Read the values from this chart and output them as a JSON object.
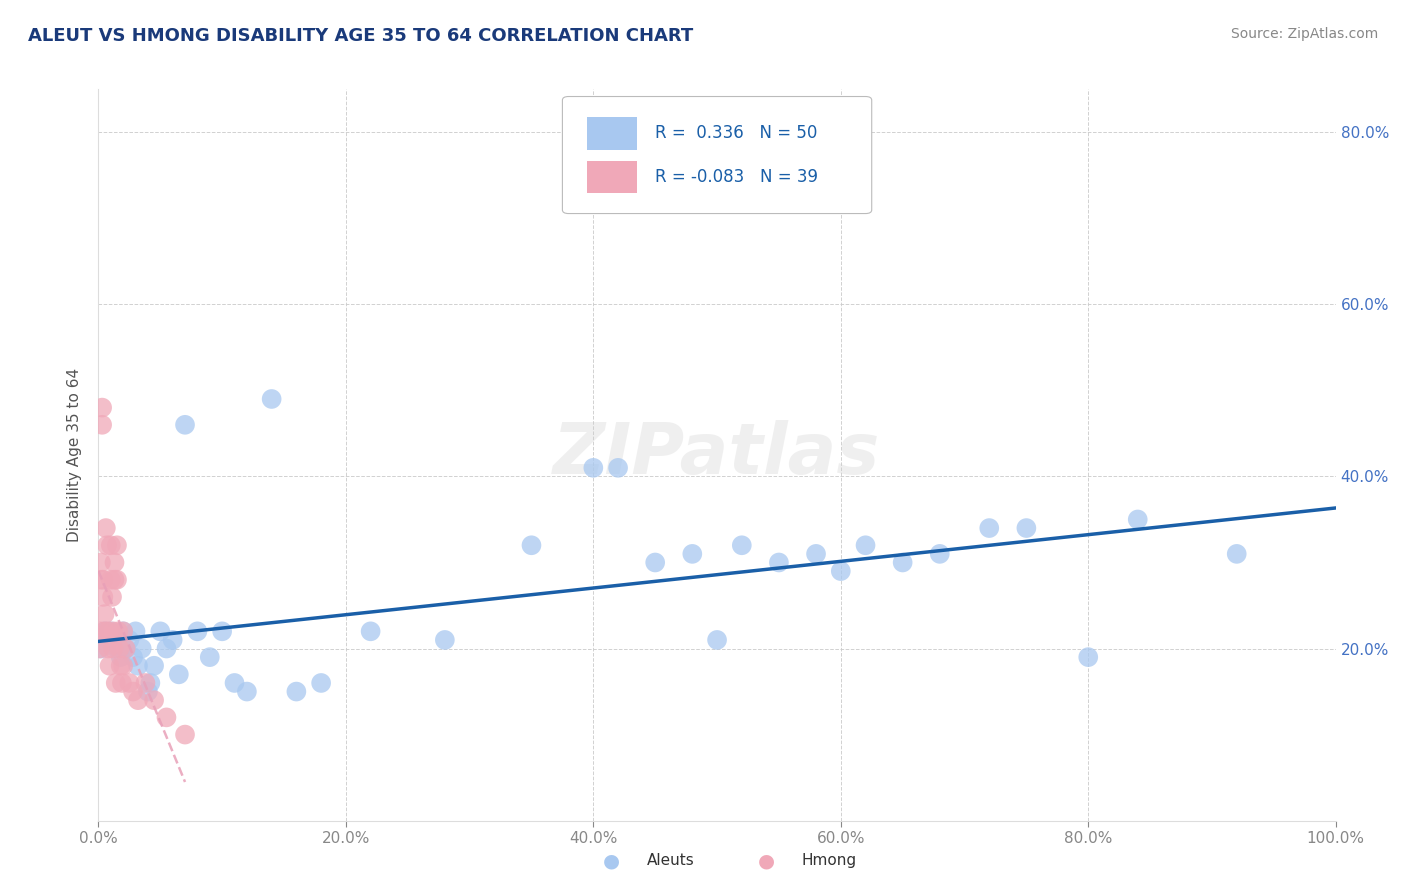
{
  "title": "ALEUT VS HMONG DISABILITY AGE 35 TO 64 CORRELATION CHART",
  "source": "Source: ZipAtlas.com",
  "ylabel": "Disability Age 35 to 64",
  "xlim": [
    0.0,
    1.0
  ],
  "ylim": [
    0.0,
    0.85
  ],
  "xticks": [
    0.0,
    0.2,
    0.4,
    0.6,
    0.8,
    1.0
  ],
  "xticklabels": [
    "0.0%",
    "20.0%",
    "40.0%",
    "60.0%",
    "80.0%",
    "100.0%"
  ],
  "yticks": [
    0.0,
    0.2,
    0.4,
    0.6,
    0.8
  ],
  "yticklabels": [
    "",
    "20.0%",
    "40.0%",
    "60.0%",
    "80.0%"
  ],
  "aleut_R": 0.336,
  "aleut_N": 50,
  "hmong_R": -0.083,
  "hmong_N": 39,
  "aleut_color": "#a8c8f0",
  "hmong_color": "#f0a8b8",
  "trend_aleut_color": "#1a5fa8",
  "trend_hmong_color": "#e8a0b8",
  "background_color": "#ffffff",
  "grid_color": "#cccccc",
  "title_color": "#1a3a7a",
  "tick_color": "#4472c4",
  "watermark_text": "ZIPatlas",
  "aleut_x": [
    0.002,
    0.005,
    0.008,
    0.01,
    0.012,
    0.015,
    0.018,
    0.02,
    0.022,
    0.025,
    0.028,
    0.03,
    0.032,
    0.035,
    0.04,
    0.042,
    0.045,
    0.05,
    0.055,
    0.06,
    0.065,
    0.07,
    0.08,
    0.09,
    0.1,
    0.11,
    0.12,
    0.14,
    0.16,
    0.18,
    0.22,
    0.28,
    0.35,
    0.4,
    0.42,
    0.45,
    0.48,
    0.5,
    0.52,
    0.55,
    0.58,
    0.6,
    0.62,
    0.65,
    0.68,
    0.72,
    0.75,
    0.8,
    0.84,
    0.92
  ],
  "aleut_y": [
    0.2,
    0.22,
    0.21,
    0.22,
    0.21,
    0.2,
    0.19,
    0.22,
    0.2,
    0.21,
    0.19,
    0.22,
    0.18,
    0.2,
    0.15,
    0.16,
    0.18,
    0.22,
    0.2,
    0.21,
    0.17,
    0.46,
    0.22,
    0.19,
    0.22,
    0.16,
    0.15,
    0.49,
    0.15,
    0.16,
    0.22,
    0.21,
    0.32,
    0.41,
    0.41,
    0.3,
    0.31,
    0.21,
    0.32,
    0.3,
    0.31,
    0.29,
    0.32,
    0.3,
    0.31,
    0.34,
    0.34,
    0.19,
    0.35,
    0.31
  ],
  "hmong_x": [
    0.001,
    0.001,
    0.002,
    0.002,
    0.003,
    0.003,
    0.004,
    0.004,
    0.005,
    0.005,
    0.006,
    0.007,
    0.008,
    0.008,
    0.009,
    0.01,
    0.01,
    0.011,
    0.012,
    0.012,
    0.013,
    0.013,
    0.014,
    0.015,
    0.015,
    0.016,
    0.017,
    0.018,
    0.019,
    0.02,
    0.02,
    0.022,
    0.025,
    0.028,
    0.032,
    0.038,
    0.045,
    0.055,
    0.07
  ],
  "hmong_y": [
    0.22,
    0.2,
    0.3,
    0.28,
    0.48,
    0.46,
    0.28,
    0.26,
    0.24,
    0.22,
    0.34,
    0.32,
    0.22,
    0.2,
    0.18,
    0.32,
    0.28,
    0.26,
    0.22,
    0.2,
    0.3,
    0.28,
    0.16,
    0.32,
    0.28,
    0.22,
    0.2,
    0.18,
    0.16,
    0.22,
    0.18,
    0.2,
    0.16,
    0.15,
    0.14,
    0.16,
    0.14,
    0.12,
    0.1
  ]
}
